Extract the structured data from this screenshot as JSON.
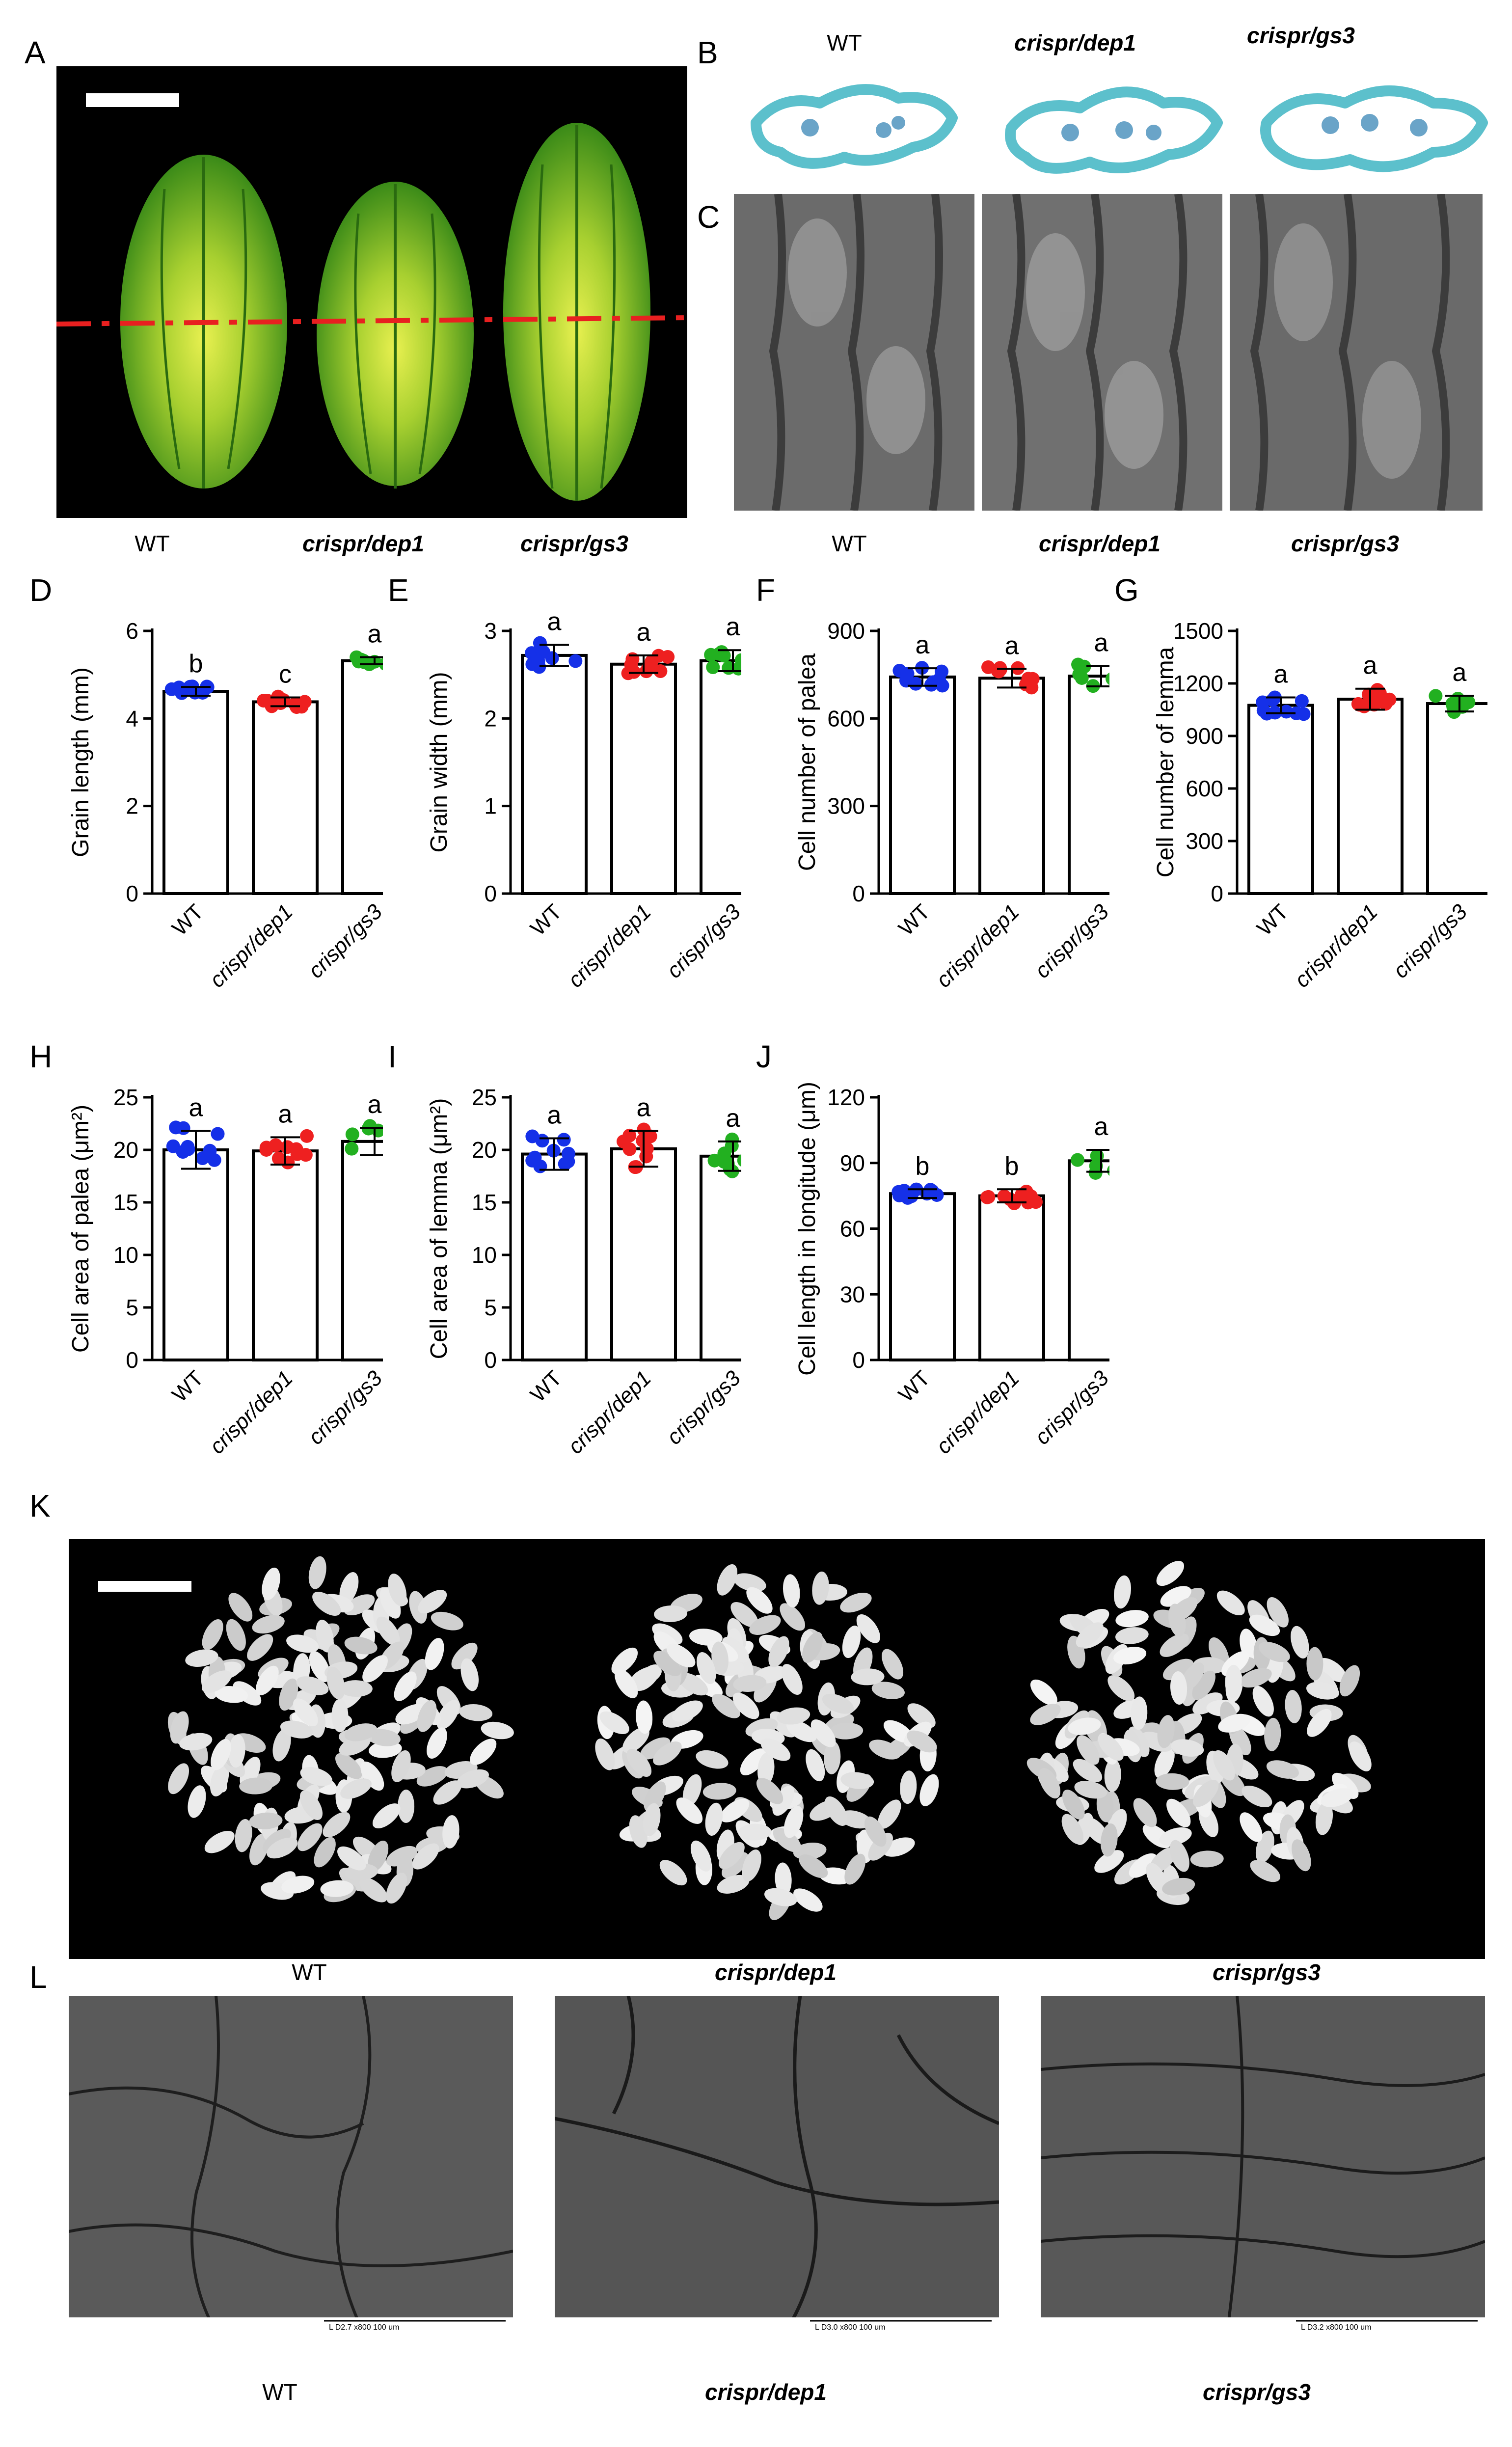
{
  "genotypes": [
    "WT",
    "crispr/dep1",
    "crispr/gs3"
  ],
  "colors": {
    "WT": "#1530e8",
    "crispr/dep1": "#ee2020",
    "crispr/gs3": "#22b020"
  },
  "panels": {
    "A": {
      "letter": "A",
      "captions": [
        "WT",
        "crispr/dep1",
        "crispr/gs3"
      ]
    },
    "B": {
      "letter": "B",
      "captions": [
        "WT",
        "crispr/dep1",
        "crispr/gs3"
      ]
    },
    "C": {
      "letter": "C",
      "captions": [
        "WT",
        "crispr/dep1",
        "crispr/gs3"
      ]
    },
    "K": {
      "letter": "K",
      "captions": [
        "WT",
        "crispr/dep1",
        "crispr/gs3"
      ]
    },
    "L": {
      "letter": "L",
      "captions": [
        "WT",
        "crispr/dep1",
        "crispr/gs3"
      ],
      "scale_labels": [
        "L  D2.7  x800    100 um",
        "L  D3.0  x800    100 um",
        "L  D3.2  x800    100 um"
      ]
    }
  },
  "chart_data": [
    {
      "id": "D",
      "letter": "D",
      "type": "bar",
      "categories": [
        "WT",
        "crispr/dep1",
        "crispr/gs3"
      ],
      "ylabel": "Grain length (mm)",
      "ylim": [
        0,
        6
      ],
      "yticks": [
        0,
        2,
        4,
        6
      ],
      "values": [
        4.62,
        4.38,
        5.32
      ],
      "errors": [
        0.1,
        0.1,
        0.08
      ],
      "letters": [
        "b",
        "c",
        "a"
      ]
    },
    {
      "id": "E",
      "letter": "E",
      "type": "bar",
      "categories": [
        "WT",
        "crispr/dep1",
        "crispr/gs3"
      ],
      "ylabel": "Grain width (mm)",
      "ylim": [
        0,
        3
      ],
      "yticks": [
        0,
        1,
        2,
        3
      ],
      "values": [
        2.72,
        2.62,
        2.66
      ],
      "errors": [
        0.12,
        0.1,
        0.12
      ],
      "letters": [
        "a",
        "a",
        "a"
      ]
    },
    {
      "id": "F",
      "letter": "F",
      "type": "bar",
      "categories": [
        "WT",
        "crispr/dep1",
        "crispr/gs3"
      ],
      "ylabel": "Cell number of palea",
      "ylim": [
        0,
        900
      ],
      "yticks": [
        0,
        300,
        600,
        900
      ],
      "values": [
        742,
        738,
        745
      ],
      "errors": [
        30,
        32,
        35
      ],
      "letters": [
        "a",
        "a",
        "a"
      ]
    },
    {
      "id": "G",
      "letter": "G",
      "type": "bar",
      "categories": [
        "WT",
        "crispr/dep1",
        "crispr/gs3"
      ],
      "ylabel": "Cell number of lemma",
      "ylim": [
        0,
        1500
      ],
      "yticks": [
        0,
        300,
        600,
        900,
        1200,
        1500
      ],
      "values": [
        1075,
        1110,
        1085
      ],
      "errors": [
        45,
        60,
        45
      ],
      "letters": [
        "a",
        "a",
        "a"
      ]
    },
    {
      "id": "H",
      "letter": "H",
      "type": "bar",
      "categories": [
        "WT",
        "crispr/dep1",
        "crispr/gs3"
      ],
      "ylabel": "Cell area of palea (μm²)",
      "ylim": [
        0,
        25
      ],
      "yticks": [
        0,
        5,
        10,
        15,
        20,
        25
      ],
      "values": [
        20.0,
        19.9,
        20.8
      ],
      "errors": [
        1.8,
        1.3,
        1.3
      ],
      "letters": [
        "a",
        "a",
        "a"
      ]
    },
    {
      "id": "I",
      "letter": "I",
      "type": "bar",
      "categories": [
        "WT",
        "crispr/dep1",
        "crispr/gs3"
      ],
      "ylabel": "Cell area of lemma (μm²)",
      "ylim": [
        0,
        25
      ],
      "yticks": [
        0,
        5,
        10,
        15,
        20,
        25
      ],
      "values": [
        19.6,
        20.1,
        19.4
      ],
      "errors": [
        1.5,
        1.7,
        1.4
      ],
      "letters": [
        "a",
        "a",
        "a"
      ]
    },
    {
      "id": "J",
      "letter": "J",
      "type": "bar",
      "categories": [
        "WT",
        "crispr/dep1",
        "crispr/gs3"
      ],
      "ylabel": "Cell length in longitude (μm)",
      "ylim": [
        0,
        120
      ],
      "yticks": [
        0,
        30,
        60,
        90,
        120
      ],
      "values": [
        76,
        75,
        91
      ],
      "errors": [
        2,
        3,
        5
      ],
      "letters": [
        "b",
        "b",
        "a"
      ]
    }
  ]
}
